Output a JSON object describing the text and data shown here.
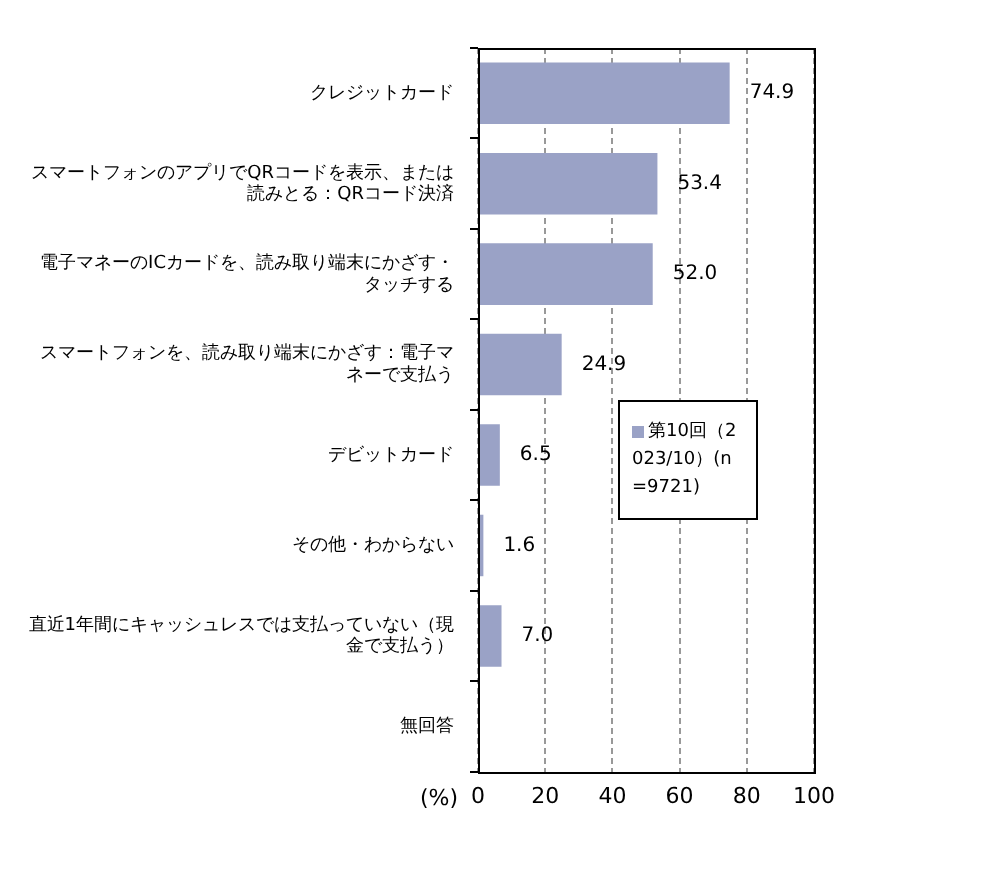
{
  "chart_data": {
    "type": "bar",
    "orientation": "horizontal",
    "xlabel": "(%)",
    "categories": [
      "クレジットカード",
      "スマートフォンのアプリでQRコードを表示、または読みとる：QRコード決済",
      "電子マネーのICカードを、読み取り端末にかざす・タッチする",
      "スマートフォンを、読み取り端末にかざす：電子マネーで支払う",
      "デビットカード",
      "その他・わからない",
      "直近1年間にキャッシュレスでは支払っていない（現金で支払う）",
      "無回答"
    ],
    "series": [
      {
        "name": "第10回（2023/10）(n=9721)",
        "color": "#9aa2c6",
        "values": [
          74.9,
          53.4,
          52.0,
          24.9,
          6.5,
          1.6,
          7.0,
          null
        ],
        "value_labels": [
          "74.9",
          "53.4",
          "52.0",
          "24.9",
          "6.5",
          "1.6",
          "7.0",
          null
        ]
      }
    ],
    "xlim": [
      0,
      100
    ],
    "xticks": [
      0,
      20,
      40,
      60,
      80,
      100
    ],
    "grid": "x",
    "legend": "right"
  }
}
